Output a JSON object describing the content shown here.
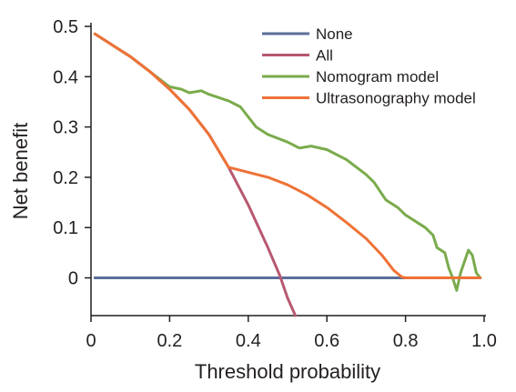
{
  "chart_data": {
    "type": "line",
    "title": "",
    "xlabel": "Threshold probability",
    "ylabel": "Net benefit",
    "xlim": [
      0,
      1.0
    ],
    "ylim": [
      -0.075,
      0.5
    ],
    "x_ticks": [
      0,
      0.2,
      0.4,
      0.6,
      0.8,
      1.0
    ],
    "x_tick_labels": [
      "0",
      "0.2",
      "0.4",
      "0.6",
      "0.8",
      "1.0"
    ],
    "y_ticks": [
      0,
      0.1,
      0.2,
      0.3,
      0.4,
      0.5
    ],
    "y_tick_labels": [
      "0",
      "0.1",
      "0.2",
      "0.3",
      "0.4",
      "0.5"
    ],
    "grid": false,
    "legend_position": "top-right",
    "series": [
      {
        "name": "None",
        "color": "#5a6e99",
        "points": [
          [
            0.01,
            0
          ],
          [
            0.99,
            0
          ]
        ]
      },
      {
        "name": "All",
        "color": "#b85870",
        "points": [
          [
            0.01,
            0.485
          ],
          [
            0.05,
            0.465
          ],
          [
            0.1,
            0.44
          ],
          [
            0.15,
            0.41
          ],
          [
            0.2,
            0.375
          ],
          [
            0.25,
            0.335
          ],
          [
            0.3,
            0.285
          ],
          [
            0.35,
            0.22
          ],
          [
            0.4,
            0.145
          ],
          [
            0.45,
            0.06
          ],
          [
            0.48,
            0.005
          ],
          [
            0.5,
            -0.04
          ],
          [
            0.52,
            -0.075
          ]
        ]
      },
      {
        "name": "Nomogram model",
        "color": "#7aab4c",
        "points": [
          [
            0.01,
            0.485
          ],
          [
            0.05,
            0.465
          ],
          [
            0.1,
            0.44
          ],
          [
            0.15,
            0.41
          ],
          [
            0.2,
            0.38
          ],
          [
            0.23,
            0.375
          ],
          [
            0.25,
            0.368
          ],
          [
            0.28,
            0.372
          ],
          [
            0.3,
            0.365
          ],
          [
            0.35,
            0.352
          ],
          [
            0.38,
            0.34
          ],
          [
            0.42,
            0.3
          ],
          [
            0.45,
            0.285
          ],
          [
            0.5,
            0.27
          ],
          [
            0.53,
            0.258
          ],
          [
            0.56,
            0.262
          ],
          [
            0.6,
            0.255
          ],
          [
            0.65,
            0.235
          ],
          [
            0.7,
            0.205
          ],
          [
            0.72,
            0.19
          ],
          [
            0.75,
            0.155
          ],
          [
            0.78,
            0.14
          ],
          [
            0.8,
            0.125
          ],
          [
            0.83,
            0.11
          ],
          [
            0.85,
            0.1
          ],
          [
            0.87,
            0.085
          ],
          [
            0.88,
            0.06
          ],
          [
            0.9,
            0.05
          ],
          [
            0.91,
            0.02
          ],
          [
            0.92,
            0
          ],
          [
            0.93,
            -0.025
          ],
          [
            0.94,
            0.01
          ],
          [
            0.96,
            0.055
          ],
          [
            0.97,
            0.045
          ],
          [
            0.98,
            0.01
          ],
          [
            0.99,
            0
          ]
        ]
      },
      {
        "name": "Ultrasonography model",
        "color": "#ee7236",
        "points": [
          [
            0.01,
            0.485
          ],
          [
            0.05,
            0.465
          ],
          [
            0.1,
            0.44
          ],
          [
            0.15,
            0.41
          ],
          [
            0.2,
            0.375
          ],
          [
            0.25,
            0.335
          ],
          [
            0.3,
            0.285
          ],
          [
            0.35,
            0.22
          ],
          [
            0.4,
            0.21
          ],
          [
            0.45,
            0.2
          ],
          [
            0.5,
            0.185
          ],
          [
            0.55,
            0.165
          ],
          [
            0.6,
            0.14
          ],
          [
            0.65,
            0.11
          ],
          [
            0.7,
            0.078
          ],
          [
            0.74,
            0.045
          ],
          [
            0.77,
            0.015
          ],
          [
            0.79,
            0.002
          ],
          [
            0.8,
            0
          ],
          [
            0.99,
            0
          ]
        ]
      }
    ]
  }
}
